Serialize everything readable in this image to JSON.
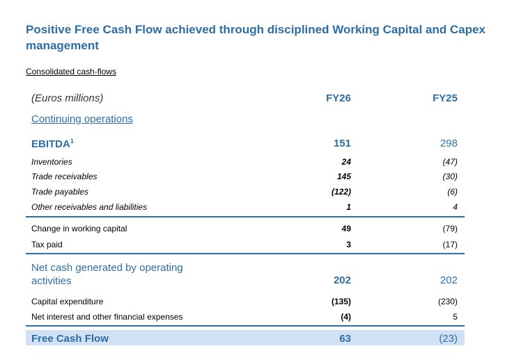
{
  "title": "Positive Free Cash Flow achieved through disciplined Working Capital and Capex management",
  "subtitle": "Consolidated cash-flows",
  "header": {
    "label": "(Euros millions)",
    "fy26": "FY26",
    "fy25": "FY25"
  },
  "section": "Continuing operations",
  "ebitda": {
    "label": "EBITDA",
    "sup": "1",
    "fy26": "151",
    "fy25": "298"
  },
  "wc_items": [
    {
      "label": "Inventories",
      "fy26": "24",
      "fy25": "(47)"
    },
    {
      "label": "Trade receivables",
      "fy26": "145",
      "fy25": "(30)"
    },
    {
      "label": "Trade payables",
      "fy26": "(122)",
      "fy25": "(6)"
    },
    {
      "label": "Other receivables and liabilities",
      "fy26": "1",
      "fy25": "4"
    }
  ],
  "mid_items": [
    {
      "label": "Change in working capital",
      "fy26": "49",
      "fy25": "(79)"
    },
    {
      "label": "Tax paid",
      "fy26": "3",
      "fy25": "(17)"
    }
  ],
  "net_cash": {
    "label_line1": "Net cash generated by operating",
    "label_line2": "activities",
    "fy26": "202",
    "fy25": "202"
  },
  "invest_items": [
    {
      "label": "Capital expenditure",
      "fy26": "(135)",
      "fy25": "(230)"
    },
    {
      "label": "Net interest and other financial expenses",
      "fy26": "(4)",
      "fy25": "5"
    }
  ],
  "fcf": {
    "label": "Free Cash Flow",
    "fy26": "63",
    "fy25": "(23)"
  },
  "colors": {
    "accent": "#2E6DA4",
    "highlight": "#CFE1F3"
  }
}
